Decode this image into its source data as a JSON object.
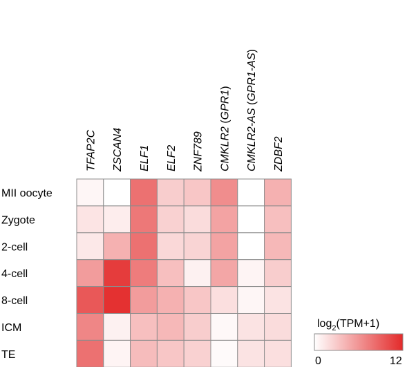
{
  "chart_data": {
    "type": "heatmap",
    "rows": [
      "MII oocyte",
      "Zygote",
      "2-cell",
      "4-cell",
      "8-cell",
      "ICM",
      "TE"
    ],
    "columns": [
      [
        {
          "text": "TFAP2C",
          "italic": true
        }
      ],
      [
        {
          "text": "ZSCAN4",
          "italic": true
        }
      ],
      [
        {
          "text": "ELF1",
          "italic": true
        }
      ],
      [
        {
          "text": "ELF2",
          "italic": true
        }
      ],
      [
        {
          "text": "ZNF789",
          "italic": true
        }
      ],
      [
        {
          "text": "CMKLR2",
          "italic": true
        },
        {
          "text": " (",
          "italic": false
        },
        {
          "text": "GPR1",
          "italic": true
        },
        {
          "text": ")",
          "italic": false
        }
      ],
      [
        {
          "text": "CMKLR2-AS",
          "italic": true
        },
        {
          "text": " (",
          "italic": false
        },
        {
          "text": "GPR1-AS",
          "italic": true
        },
        {
          "text": ")",
          "italic": false
        }
      ],
      [
        {
          "text": "ZDBF2",
          "italic": true
        }
      ]
    ],
    "values": [
      [
        0.5,
        0.0,
        8.0,
        2.8,
        3.2,
        6.4,
        0.0,
        4.4
      ],
      [
        1.5,
        1.0,
        7.6,
        2.6,
        2.0,
        5.2,
        0.0,
        3.6
      ],
      [
        1.3,
        4.4,
        8.0,
        2.2,
        2.4,
        5.2,
        0.0,
        4.0
      ],
      [
        5.6,
        11.0,
        7.4,
        3.6,
        0.8,
        5.0,
        0.6,
        2.8
      ],
      [
        9.4,
        11.6,
        5.6,
        4.4,
        3.2,
        1.8,
        0.5,
        1.6
      ],
      [
        6.8,
        0.8,
        3.6,
        4.0,
        2.8,
        0.4,
        1.6,
        2.0
      ],
      [
        8.0,
        0.6,
        3.8,
        3.2,
        2.6,
        0.3,
        1.6,
        1.8
      ]
    ],
    "legend": {
      "title_main": "log",
      "title_sub": "2",
      "title_rest": "(TPM+1)",
      "min_label": "0",
      "max_label": "12",
      "min": 0,
      "max": 12
    },
    "colors": {
      "low": "#ffffff",
      "high": "#e32a2a",
      "cell_border": "#8c8c8c"
    }
  }
}
